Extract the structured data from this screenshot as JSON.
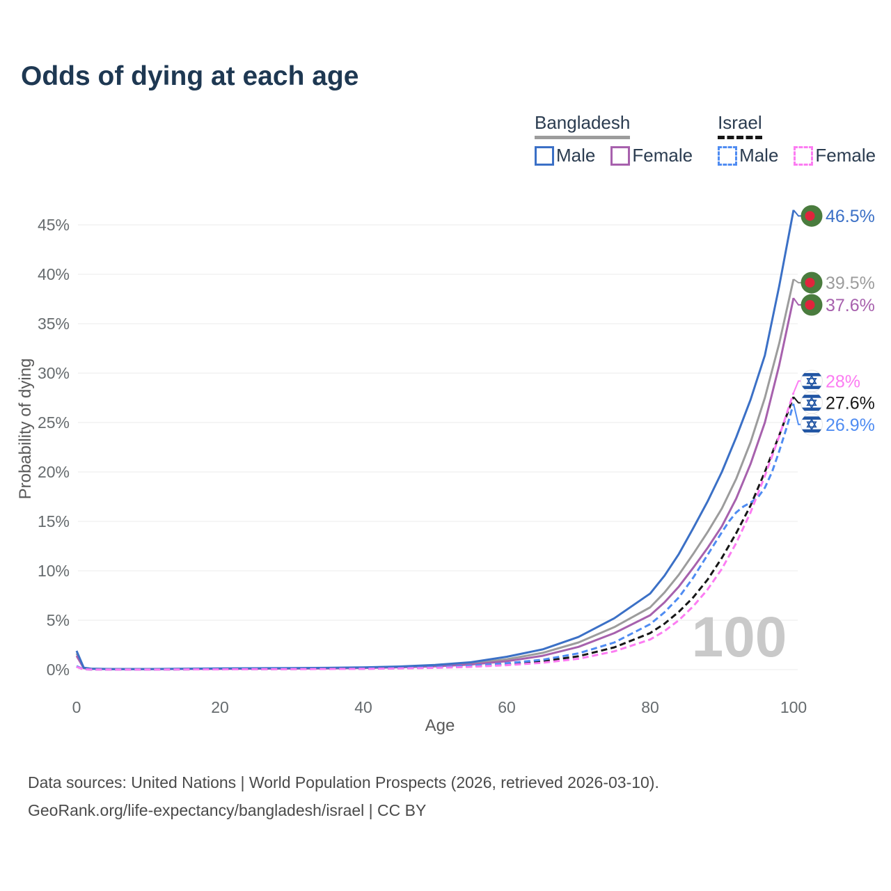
{
  "page": {
    "title": "Odds of dying at each age"
  },
  "legend": {
    "groups": [
      {
        "label": "Bangladesh",
        "items": [
          {
            "label": "Male"
          },
          {
            "label": "Female"
          }
        ]
      },
      {
        "label": "Israel",
        "items": [
          {
            "label": "Male"
          },
          {
            "label": "Female"
          }
        ]
      }
    ]
  },
  "chart_data": {
    "type": "line",
    "title": "Odds of dying at each age",
    "xlabel": "Age",
    "ylabel": "Probability of dying",
    "xlim": [
      0,
      100
    ],
    "ylim": [
      0,
      47
    ],
    "x_ticks": [
      0,
      20,
      40,
      60,
      80,
      100
    ],
    "y_ticks": [
      0,
      5,
      10,
      15,
      20,
      25,
      30,
      35,
      40,
      45
    ],
    "y_tick_suffix": "%",
    "grid": true,
    "legend_position": "top-right",
    "watermark": "100",
    "style": {
      "grid_color": "#ebebeb",
      "axis_text_color": "#666b6e",
      "watermark_color": "#c9c9c9",
      "title_color": "#1e3852",
      "footer_color": "#4a4a4a"
    },
    "series": [
      {
        "id": "bangladesh-both",
        "name": "Bangladesh",
        "color": "#9c9c9c",
        "dash": null,
        "points": [
          [
            0,
            1.65
          ],
          [
            1,
            0.17
          ],
          [
            2,
            0.09
          ],
          [
            5,
            0.05
          ],
          [
            10,
            0.05
          ],
          [
            15,
            0.08
          ],
          [
            20,
            0.1
          ],
          [
            25,
            0.12
          ],
          [
            30,
            0.14
          ],
          [
            35,
            0.16
          ],
          [
            40,
            0.2
          ],
          [
            45,
            0.28
          ],
          [
            50,
            0.4
          ],
          [
            55,
            0.62
          ],
          [
            60,
            1.05
          ],
          [
            65,
            1.7
          ],
          [
            70,
            2.75
          ],
          [
            75,
            4.3
          ],
          [
            80,
            6.3
          ],
          [
            82,
            7.8
          ],
          [
            84,
            9.6
          ],
          [
            86,
            11.7
          ],
          [
            88,
            13.9
          ],
          [
            90,
            16.3
          ],
          [
            92,
            19.3
          ],
          [
            94,
            23.0
          ],
          [
            96,
            27.5
          ],
          [
            98,
            33.0
          ],
          [
            100,
            39.5
          ]
        ]
      },
      {
        "id": "bangladesh-female",
        "name": "Bangladesh Female",
        "color": "#a761ad",
        "dash": null,
        "points": [
          [
            0,
            1.4
          ],
          [
            1,
            0.15
          ],
          [
            2,
            0.08
          ],
          [
            5,
            0.05
          ],
          [
            10,
            0.05
          ],
          [
            15,
            0.07
          ],
          [
            20,
            0.08
          ],
          [
            25,
            0.1
          ],
          [
            30,
            0.11
          ],
          [
            35,
            0.13
          ],
          [
            40,
            0.17
          ],
          [
            45,
            0.24
          ],
          [
            50,
            0.33
          ],
          [
            55,
            0.52
          ],
          [
            60,
            0.85
          ],
          [
            65,
            1.4
          ],
          [
            70,
            2.3
          ],
          [
            75,
            3.7
          ],
          [
            80,
            5.5
          ],
          [
            82,
            6.8
          ],
          [
            84,
            8.4
          ],
          [
            86,
            10.3
          ],
          [
            88,
            12.3
          ],
          [
            90,
            14.5
          ],
          [
            92,
            17.3
          ],
          [
            94,
            20.8
          ],
          [
            96,
            25.0
          ],
          [
            98,
            30.8
          ],
          [
            100,
            37.6
          ]
        ]
      },
      {
        "id": "bangladesh-male",
        "name": "Bangladesh Male",
        "color": "#3b70c6",
        "dash": null,
        "points": [
          [
            0,
            1.9
          ],
          [
            1,
            0.2
          ],
          [
            2,
            0.1
          ],
          [
            5,
            0.06
          ],
          [
            10,
            0.06
          ],
          [
            15,
            0.09
          ],
          [
            20,
            0.12
          ],
          [
            25,
            0.14
          ],
          [
            30,
            0.16
          ],
          [
            35,
            0.18
          ],
          [
            40,
            0.23
          ],
          [
            45,
            0.32
          ],
          [
            50,
            0.48
          ],
          [
            55,
            0.75
          ],
          [
            60,
            1.3
          ],
          [
            65,
            2.05
          ],
          [
            70,
            3.3
          ],
          [
            75,
            5.2
          ],
          [
            80,
            7.7
          ],
          [
            82,
            9.5
          ],
          [
            84,
            11.7
          ],
          [
            86,
            14.3
          ],
          [
            88,
            17.0
          ],
          [
            90,
            20.0
          ],
          [
            92,
            23.5
          ],
          [
            94,
            27.3
          ],
          [
            96,
            31.8
          ],
          [
            98,
            38.8
          ],
          [
            100,
            46.5
          ]
        ]
      },
      {
        "id": "israel-both",
        "name": "Israel",
        "color": "#161616",
        "dash": "9 5",
        "points": [
          [
            0,
            0.3
          ],
          [
            1,
            0.035
          ],
          [
            2,
            0.02
          ],
          [
            5,
            0.01
          ],
          [
            10,
            0.01
          ],
          [
            15,
            0.025
          ],
          [
            20,
            0.04
          ],
          [
            25,
            0.05
          ],
          [
            30,
            0.06
          ],
          [
            35,
            0.075
          ],
          [
            40,
            0.09
          ],
          [
            45,
            0.14
          ],
          [
            50,
            0.21
          ],
          [
            55,
            0.33
          ],
          [
            60,
            0.55
          ],
          [
            65,
            0.85
          ],
          [
            70,
            1.35
          ],
          [
            75,
            2.25
          ],
          [
            80,
            3.7
          ],
          [
            82,
            4.65
          ],
          [
            84,
            5.85
          ],
          [
            86,
            7.3
          ],
          [
            88,
            9.1
          ],
          [
            90,
            11.3
          ],
          [
            92,
            13.8
          ],
          [
            94,
            16.6
          ],
          [
            96,
            20.0
          ],
          [
            98,
            23.7
          ],
          [
            100,
            27.6
          ]
        ]
      },
      {
        "id": "israel-male",
        "name": "Israel Male",
        "color": "#4f8cf2",
        "dash": "9 5",
        "points": [
          [
            0,
            0.35
          ],
          [
            1,
            0.04
          ],
          [
            2,
            0.02
          ],
          [
            5,
            0.015
          ],
          [
            10,
            0.015
          ],
          [
            15,
            0.03
          ],
          [
            20,
            0.05
          ],
          [
            25,
            0.06
          ],
          [
            30,
            0.07
          ],
          [
            35,
            0.08
          ],
          [
            40,
            0.1
          ],
          [
            45,
            0.15
          ],
          [
            50,
            0.25
          ],
          [
            55,
            0.4
          ],
          [
            60,
            0.65
          ],
          [
            65,
            1.0
          ],
          [
            70,
            1.65
          ],
          [
            75,
            2.75
          ],
          [
            80,
            4.6
          ],
          [
            82,
            5.8
          ],
          [
            84,
            7.3
          ],
          [
            86,
            9.3
          ],
          [
            88,
            11.6
          ],
          [
            90,
            13.9
          ],
          [
            91,
            15.0
          ],
          [
            92,
            15.9
          ],
          [
            93,
            16.5
          ],
          [
            94,
            16.9
          ],
          [
            95,
            17.4
          ],
          [
            96,
            18.4
          ],
          [
            97,
            20.0
          ],
          [
            98,
            22.1
          ],
          [
            99,
            24.4
          ],
          [
            100,
            26.9
          ]
        ]
      },
      {
        "id": "israel-female",
        "name": "Israel Female",
        "color": "#fc7cf2",
        "dash": "9 5",
        "points": [
          [
            0,
            0.28
          ],
          [
            1,
            0.03
          ],
          [
            2,
            0.015
          ],
          [
            5,
            0.01
          ],
          [
            10,
            0.01
          ],
          [
            15,
            0.02
          ],
          [
            20,
            0.03
          ],
          [
            25,
            0.04
          ],
          [
            30,
            0.05
          ],
          [
            35,
            0.065
          ],
          [
            40,
            0.08
          ],
          [
            45,
            0.12
          ],
          [
            50,
            0.18
          ],
          [
            55,
            0.28
          ],
          [
            60,
            0.45
          ],
          [
            65,
            0.7
          ],
          [
            70,
            1.1
          ],
          [
            75,
            1.85
          ],
          [
            80,
            3.05
          ],
          [
            82,
            3.9
          ],
          [
            84,
            5.0
          ],
          [
            86,
            6.4
          ],
          [
            88,
            8.1
          ],
          [
            90,
            10.2
          ],
          [
            92,
            12.8
          ],
          [
            94,
            15.9
          ],
          [
            96,
            19.6
          ],
          [
            98,
            23.6
          ],
          [
            100,
            28.0
          ]
        ]
      }
    ],
    "end_labels": [
      {
        "text": "46.5%",
        "value": 46.5,
        "label_value": 45.9,
        "color": "#3b70c6",
        "flag": "bangladesh"
      },
      {
        "text": "39.5%",
        "value": 39.5,
        "label_value": 39.15,
        "color": "#9c9c9c",
        "flag": "bangladesh"
      },
      {
        "text": "37.6%",
        "value": 37.6,
        "label_value": 36.9,
        "color": "#a761ad",
        "flag": "bangladesh"
      },
      {
        "text": "28%",
        "value": 28.0,
        "label_value": 29.2,
        "color": "#fc7cf2",
        "flag": "israel"
      },
      {
        "text": "27.6%",
        "value": 27.6,
        "label_value": 27.0,
        "color": "#161616",
        "flag": "israel"
      },
      {
        "text": "26.9%",
        "value": 26.9,
        "label_value": 24.8,
        "color": "#4f8cf2",
        "flag": "israel"
      }
    ]
  },
  "footer": {
    "line1": "Data sources: United Nations | World Population Prospects (2026, retrieved 2026-03-10).",
    "line2": "GeoRank.org/life-expectancy/bangladesh/israel | CC BY"
  }
}
